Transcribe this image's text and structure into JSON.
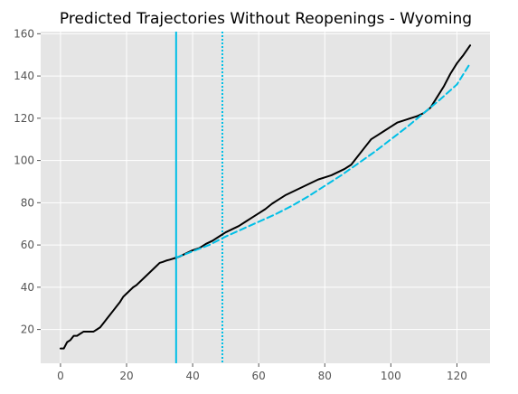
{
  "chart_data": {
    "type": "line",
    "title": "Predicted Trajectories Without Reopenings - Wyoming",
    "xlabel": "",
    "ylabel": "",
    "xlim": [
      -6,
      130
    ],
    "ylim": [
      4,
      161
    ],
    "xticks": [
      0,
      20,
      40,
      60,
      80,
      100,
      120
    ],
    "yticks": [
      20,
      40,
      60,
      80,
      100,
      120,
      140,
      160
    ],
    "grid": true,
    "legend": "none",
    "colors": {
      "background": "#e5e5e5",
      "grid": "#ffffff",
      "actual": "#000000",
      "predicted": "#00bfe6",
      "markers": "#00bfe6"
    },
    "vlines": [
      {
        "x": 35,
        "style": "solid"
      },
      {
        "x": 49,
        "style": "dotted"
      }
    ],
    "series": [
      {
        "style": "solid",
        "x": [
          0,
          1,
          2,
          3,
          4,
          5,
          6,
          7,
          8,
          9,
          10,
          11,
          12,
          13,
          14,
          15,
          16,
          17,
          18,
          19,
          20,
          21,
          22,
          23,
          24,
          25,
          26,
          27,
          28,
          29,
          30,
          31,
          32,
          33,
          34,
          35,
          36,
          38,
          40,
          42,
          44,
          46,
          48,
          50,
          52,
          54,
          56,
          58,
          60,
          62,
          64,
          66,
          68,
          70,
          72,
          74,
          76,
          78,
          80,
          82,
          84,
          86,
          88,
          90,
          92,
          94,
          96,
          98,
          100,
          102,
          104,
          106,
          108,
          110,
          112,
          114,
          116,
          118,
          120,
          122,
          124
        ],
        "values": [
          11,
          11,
          14,
          15,
          17,
          17,
          18,
          19,
          19,
          19,
          19,
          20,
          21,
          23,
          25,
          27,
          29,
          31,
          33,
          35.5,
          37,
          38.5,
          40,
          41,
          42.5,
          44,
          45.5,
          47,
          48.5,
          50,
          51.5,
          52,
          52.6,
          53,
          53.5,
          54,
          54.5,
          56,
          57.5,
          58.5,
          60.5,
          62,
          64,
          66,
          67.5,
          69,
          71,
          73,
          75,
          77,
          79.5,
          81.5,
          83.5,
          85,
          86.5,
          88,
          89.5,
          91,
          92,
          93,
          94.5,
          96,
          98,
          102,
          106,
          110,
          112,
          114,
          116,
          118,
          119,
          120,
          121,
          122.5,
          125,
          130,
          135,
          141,
          146,
          150,
          154.5
        ]
      },
      {
        "style": "dashed",
        "x": [
          35,
          40,
          45,
          50,
          55,
          60,
          65,
          70,
          75,
          80,
          85,
          90,
          95,
          100,
          105,
          110,
          115,
          120,
          124
        ],
        "values": [
          54,
          57,
          60,
          64,
          67.5,
          71,
          74.5,
          78.5,
          83,
          88,
          93,
          98.5,
          104,
          110,
          116,
          122.5,
          129,
          136,
          146
        ]
      }
    ]
  }
}
